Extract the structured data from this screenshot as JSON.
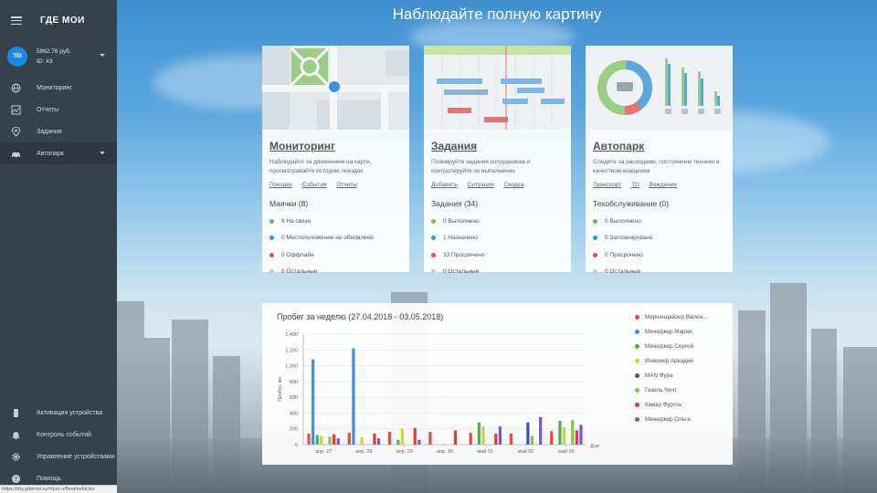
{
  "app": {
    "logo": "ГДЕ МОИ"
  },
  "account": {
    "initials": "TEI",
    "balance": "5962.76 руб.",
    "id": "ID: #3"
  },
  "sidebar": {
    "items": [
      {
        "label": "Мониторинг",
        "icon": "globe-icon"
      },
      {
        "label": "Отчеты",
        "icon": "chart-icon"
      },
      {
        "label": "Задания",
        "icon": "location-icon"
      },
      {
        "label": "Автопарк",
        "icon": "car-icon"
      }
    ],
    "bottom_items": [
      {
        "label": "Активация устройства",
        "icon": "phone-icon"
      },
      {
        "label": "Контроль событий",
        "icon": "bell-icon"
      },
      {
        "label": "Управление устройствами",
        "icon": "gear-icon"
      },
      {
        "label": "Помощь",
        "icon": "help-icon"
      }
    ]
  },
  "status_url": "https://my.gdemoi.ru/#/pro-u/fleet/vehicles",
  "page_title": "Наблюдайте полную картину",
  "cards": [
    {
      "title": "Мониторинг",
      "description": "Наблюдайте за движением на карте, просматривайте историю поездок",
      "links": [
        "Поездки",
        "События",
        "Отчеты"
      ],
      "subtitle": "Маячки (8)",
      "stats": [
        {
          "text": "8 На связи",
          "color": "#6cc04a"
        },
        {
          "text": "0 Местоположение не обновлено",
          "color": "#1aa3d9"
        },
        {
          "text": "0 Оффлайн",
          "color": "#e74c3c"
        },
        {
          "text": "0 Остальные",
          "color": "#cccccc"
        }
      ]
    },
    {
      "title": "Задания",
      "description": "Планируйте задания сотрудникам и контролируйте их выполнение",
      "links": [
        "Добавить",
        "Ситуация",
        "Сводка"
      ],
      "subtitle": "Задания (34)",
      "stats": [
        {
          "text": "0 Выполнено",
          "color": "#6cc04a"
        },
        {
          "text": "1 Назначено",
          "color": "#1aa3d9"
        },
        {
          "text": "33 Просрочено",
          "color": "#e74c3c"
        },
        {
          "text": "0 Остальные",
          "color": "#cccccc"
        }
      ]
    },
    {
      "title": "Автопарк",
      "description": "Следите за расходами, состоянием техники и качеством вождения",
      "links": [
        "Транспорт",
        "ТО",
        "Вождение"
      ],
      "subtitle": "Техобслуживание (0)",
      "stats": [
        {
          "text": "0 Выполнено",
          "color": "#6cc04a"
        },
        {
          "text": "0 Запланировано",
          "color": "#1aa3d9"
        },
        {
          "text": "0 Просрочено",
          "color": "#e74c3c"
        },
        {
          "text": "0 Остальные",
          "color": "#cccccc"
        }
      ]
    }
  ],
  "chart_data": {
    "type": "bar",
    "title": "Пробег за неделю (27.04.2018 - 03.05.2018)",
    "ylabel": "Пробег, км",
    "xlabel": "Дни",
    "ylim": [
      0,
      1400
    ],
    "yticks": [
      0,
      200,
      400,
      600,
      800,
      1000,
      1200,
      1400
    ],
    "ytick_labels": [
      "0",
      "200",
      "400",
      "600",
      "800",
      "1,000",
      "1,200",
      "1,400"
    ],
    "categories": [
      "апр. 27",
      "апр. 28",
      "апр. 29",
      "апр. 30",
      "май 01",
      "май 02",
      "май 03"
    ],
    "series": [
      {
        "name": "Мерчендайзер Вален...",
        "color": "#e74c3c",
        "values": [
          140,
          150,
          160,
          160,
          150,
          140,
          170
        ]
      },
      {
        "name": "Менеджер Мария",
        "color": "#3d8fe8",
        "values": [
          1080,
          1220,
          0,
          0,
          0,
          0,
          0
        ]
      },
      {
        "name": "Менеджер Сергей",
        "color": "#4caf50",
        "values": [
          120,
          0,
          60,
          0,
          280,
          0,
          300
        ]
      },
      {
        "name": "Инженер Аркадий",
        "color": "#c8d63a",
        "values": [
          110,
          90,
          200,
          0,
          230,
          0,
          220
        ]
      },
      {
        "name": "MAN Фура",
        "color": "#3f51b5",
        "values": [
          0,
          0,
          0,
          0,
          0,
          280,
          0
        ]
      },
      {
        "name": "Газель Next",
        "color": "#8bc34a",
        "values": [
          100,
          0,
          0,
          0,
          0,
          110,
          310
        ]
      },
      {
        "name": "Камаз Фургон",
        "color": "#e53935",
        "values": [
          130,
          140,
          210,
          180,
          140,
          0,
          180
        ]
      },
      {
        "name": "Менеджер Ольга",
        "color": "#7e57c2",
        "values": [
          80,
          80,
          60,
          0,
          230,
          350,
          250
        ]
      }
    ]
  }
}
